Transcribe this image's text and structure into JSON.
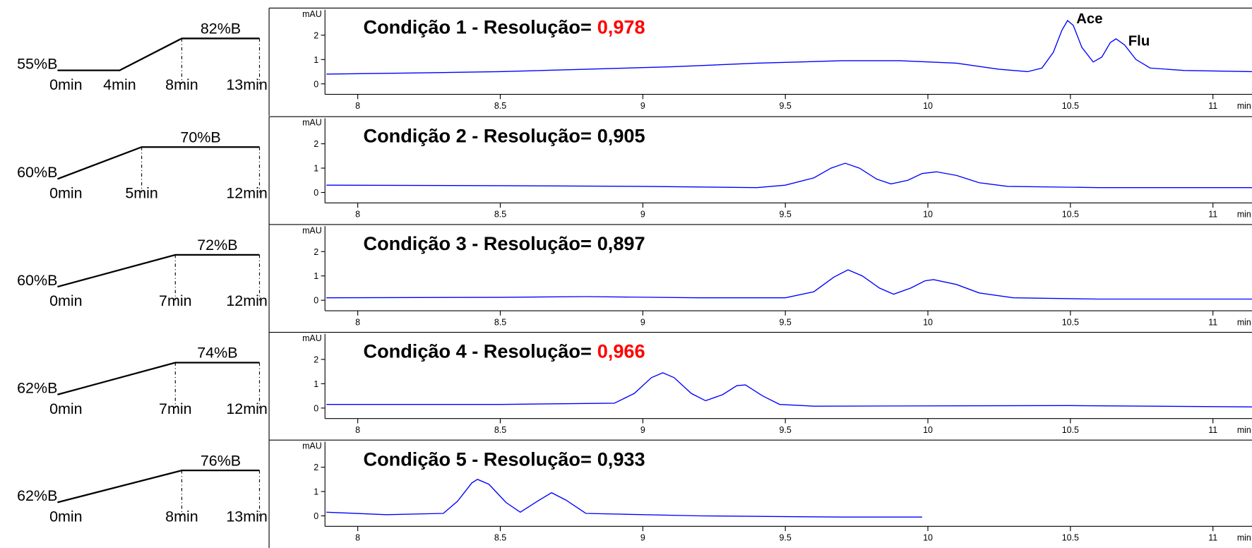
{
  "chart_data": [
    {
      "type": "line",
      "title": "Condição 1 - Resolução=",
      "resolution": "0,978",
      "resolution_color": "#ff0000",
      "annotations": [
        "Ace",
        "Flu"
      ],
      "x": [
        7.89,
        8.2,
        8.5,
        8.8,
        9.1,
        9.4,
        9.7,
        9.9,
        10.1,
        10.25,
        10.35,
        10.4,
        10.44,
        10.47,
        10.49,
        10.51,
        10.54,
        10.58,
        10.61,
        10.64,
        10.66,
        10.69,
        10.73,
        10.78,
        10.9,
        11.14
      ],
      "values": [
        0.4,
        0.45,
        0.5,
        0.6,
        0.7,
        0.85,
        0.95,
        0.95,
        0.85,
        0.6,
        0.5,
        0.65,
        1.3,
        2.2,
        2.6,
        2.4,
        1.5,
        0.9,
        1.1,
        1.7,
        1.85,
        1.6,
        1.0,
        0.65,
        0.55,
        0.5
      ],
      "color": "#0000ff",
      "xlim": [
        7.885,
        11.137
      ],
      "xticks": [
        8,
        8.5,
        9,
        9.5,
        10,
        10.5,
        11
      ],
      "x_unit": "min",
      "ylim": [
        -0.43,
        2.85
      ],
      "yticks": [
        0,
        1,
        2
      ],
      "y_unit": "mAU",
      "gradient": {
        "start": {
          "value": 55,
          "label": "55%B"
        },
        "end": {
          "value": 82,
          "label": "82%B"
        },
        "times": [
          {
            "value": 0,
            "label": "0min"
          },
          {
            "value": 4,
            "label": "4min"
          },
          {
            "value": 8,
            "label": "8min"
          },
          {
            "value": 13,
            "label": "13min"
          }
        ]
      }
    },
    {
      "type": "line",
      "title": "Condição 2 - Resolução=",
      "resolution": "0,905",
      "resolution_color": "#000000",
      "x": [
        7.89,
        8.5,
        9.0,
        9.4,
        9.5,
        9.6,
        9.66,
        9.71,
        9.76,
        9.82,
        9.87,
        9.93,
        9.98,
        10.03,
        10.1,
        10.18,
        10.28,
        10.6,
        11.14
      ],
      "values": [
        0.3,
        0.28,
        0.25,
        0.2,
        0.3,
        0.6,
        1.0,
        1.2,
        1.0,
        0.55,
        0.35,
        0.5,
        0.78,
        0.85,
        0.7,
        0.4,
        0.25,
        0.2,
        0.2
      ],
      "color": "#0000ff",
      "xlim": [
        7.885,
        11.137
      ],
      "xticks": [
        8,
        8.5,
        9,
        9.5,
        10,
        10.5,
        11
      ],
      "x_unit": "min",
      "ylim": [
        -0.43,
        2.85
      ],
      "yticks": [
        0,
        1,
        2
      ],
      "y_unit": "mAU",
      "gradient": {
        "start": {
          "value": 60,
          "label": "60%B"
        },
        "end": {
          "value": 70,
          "label": "70%B"
        },
        "times": [
          {
            "value": 0,
            "label": "0min"
          },
          {
            "value": 5,
            "label": "5min"
          },
          {
            "value": 12,
            "label": "12min"
          }
        ]
      }
    },
    {
      "type": "line",
      "title": "Condição 3 - Resolução=",
      "resolution": "0,897",
      "resolution_color": "#000000",
      "x": [
        7.89,
        8.5,
        8.8,
        9.2,
        9.5,
        9.6,
        9.67,
        9.72,
        9.77,
        9.83,
        9.88,
        9.94,
        9.99,
        10.02,
        10.1,
        10.18,
        10.3,
        10.6,
        11.14
      ],
      "values": [
        0.1,
        0.12,
        0.15,
        0.1,
        0.1,
        0.35,
        0.95,
        1.25,
        1.0,
        0.5,
        0.25,
        0.5,
        0.8,
        0.85,
        0.65,
        0.3,
        0.1,
        0.05,
        0.05
      ],
      "color": "#0000ff",
      "xlim": [
        7.885,
        11.137
      ],
      "xticks": [
        8,
        8.5,
        9,
        9.5,
        10,
        10.5,
        11
      ],
      "x_unit": "min",
      "ylim": [
        -0.43,
        2.85
      ],
      "yticks": [
        0,
        1,
        2
      ],
      "y_unit": "mAU",
      "gradient": {
        "start": {
          "value": 60,
          "label": "60%B"
        },
        "end": {
          "value": 72,
          "label": "72%B"
        },
        "times": [
          {
            "value": 0,
            "label": "0min"
          },
          {
            "value": 7,
            "label": "7min"
          },
          {
            "value": 12,
            "label": "12min"
          }
        ]
      }
    },
    {
      "type": "line",
      "title": "Condição 4 - Resolução=",
      "resolution": "0,966",
      "resolution_color": "#ff0000",
      "x": [
        7.89,
        8.5,
        8.9,
        8.97,
        9.03,
        9.07,
        9.11,
        9.17,
        9.22,
        9.28,
        9.33,
        9.36,
        9.42,
        9.48,
        9.6,
        10.5,
        11.14
      ],
      "values": [
        0.15,
        0.15,
        0.2,
        0.6,
        1.25,
        1.45,
        1.25,
        0.6,
        0.3,
        0.55,
        0.92,
        0.95,
        0.5,
        0.15,
        0.08,
        0.1,
        0.05
      ],
      "color": "#0000ff",
      "xlim": [
        7.885,
        11.137
      ],
      "xticks": [
        8,
        8.5,
        9,
        9.5,
        10,
        10.5,
        11
      ],
      "x_unit": "min",
      "ylim": [
        -0.43,
        2.85
      ],
      "yticks": [
        0,
        1,
        2
      ],
      "y_unit": "mAU",
      "gradient": {
        "start": {
          "value": 62,
          "label": "62%B"
        },
        "end": {
          "value": 74,
          "label": "74%B"
        },
        "times": [
          {
            "value": 0,
            "label": "0min"
          },
          {
            "value": 7,
            "label": "7min"
          },
          {
            "value": 12,
            "label": "12min"
          }
        ]
      }
    },
    {
      "type": "line",
      "title": "Condição 5 - Resolução=",
      "resolution": "0,933",
      "resolution_color": "#000000",
      "x": [
        7.89,
        8.1,
        8.3,
        8.35,
        8.4,
        8.42,
        8.46,
        8.52,
        8.57,
        8.63,
        8.68,
        8.73,
        8.8,
        9.2,
        9.7,
        9.98
      ],
      "values": [
        0.15,
        0.05,
        0.1,
        0.6,
        1.35,
        1.5,
        1.3,
        0.55,
        0.15,
        0.6,
        0.95,
        0.65,
        0.1,
        0.0,
        -0.05,
        -0.05
      ],
      "color": "#0000ff",
      "xlim": [
        7.885,
        11.137
      ],
      "xticks": [
        8,
        8.5,
        9,
        9.5,
        10,
        10.5,
        11
      ],
      "x_unit": "min",
      "ylim": [
        -0.43,
        2.85
      ],
      "yticks": [
        0,
        1,
        2
      ],
      "y_unit": "mAU",
      "gradient": {
        "start": {
          "value": 62,
          "label": "62%B"
        },
        "end": {
          "value": 76,
          "label": "76%B"
        },
        "times": [
          {
            "value": 0,
            "label": "0min"
          },
          {
            "value": 8,
            "label": "8min"
          },
          {
            "value": 13,
            "label": "13min"
          }
        ]
      }
    }
  ]
}
